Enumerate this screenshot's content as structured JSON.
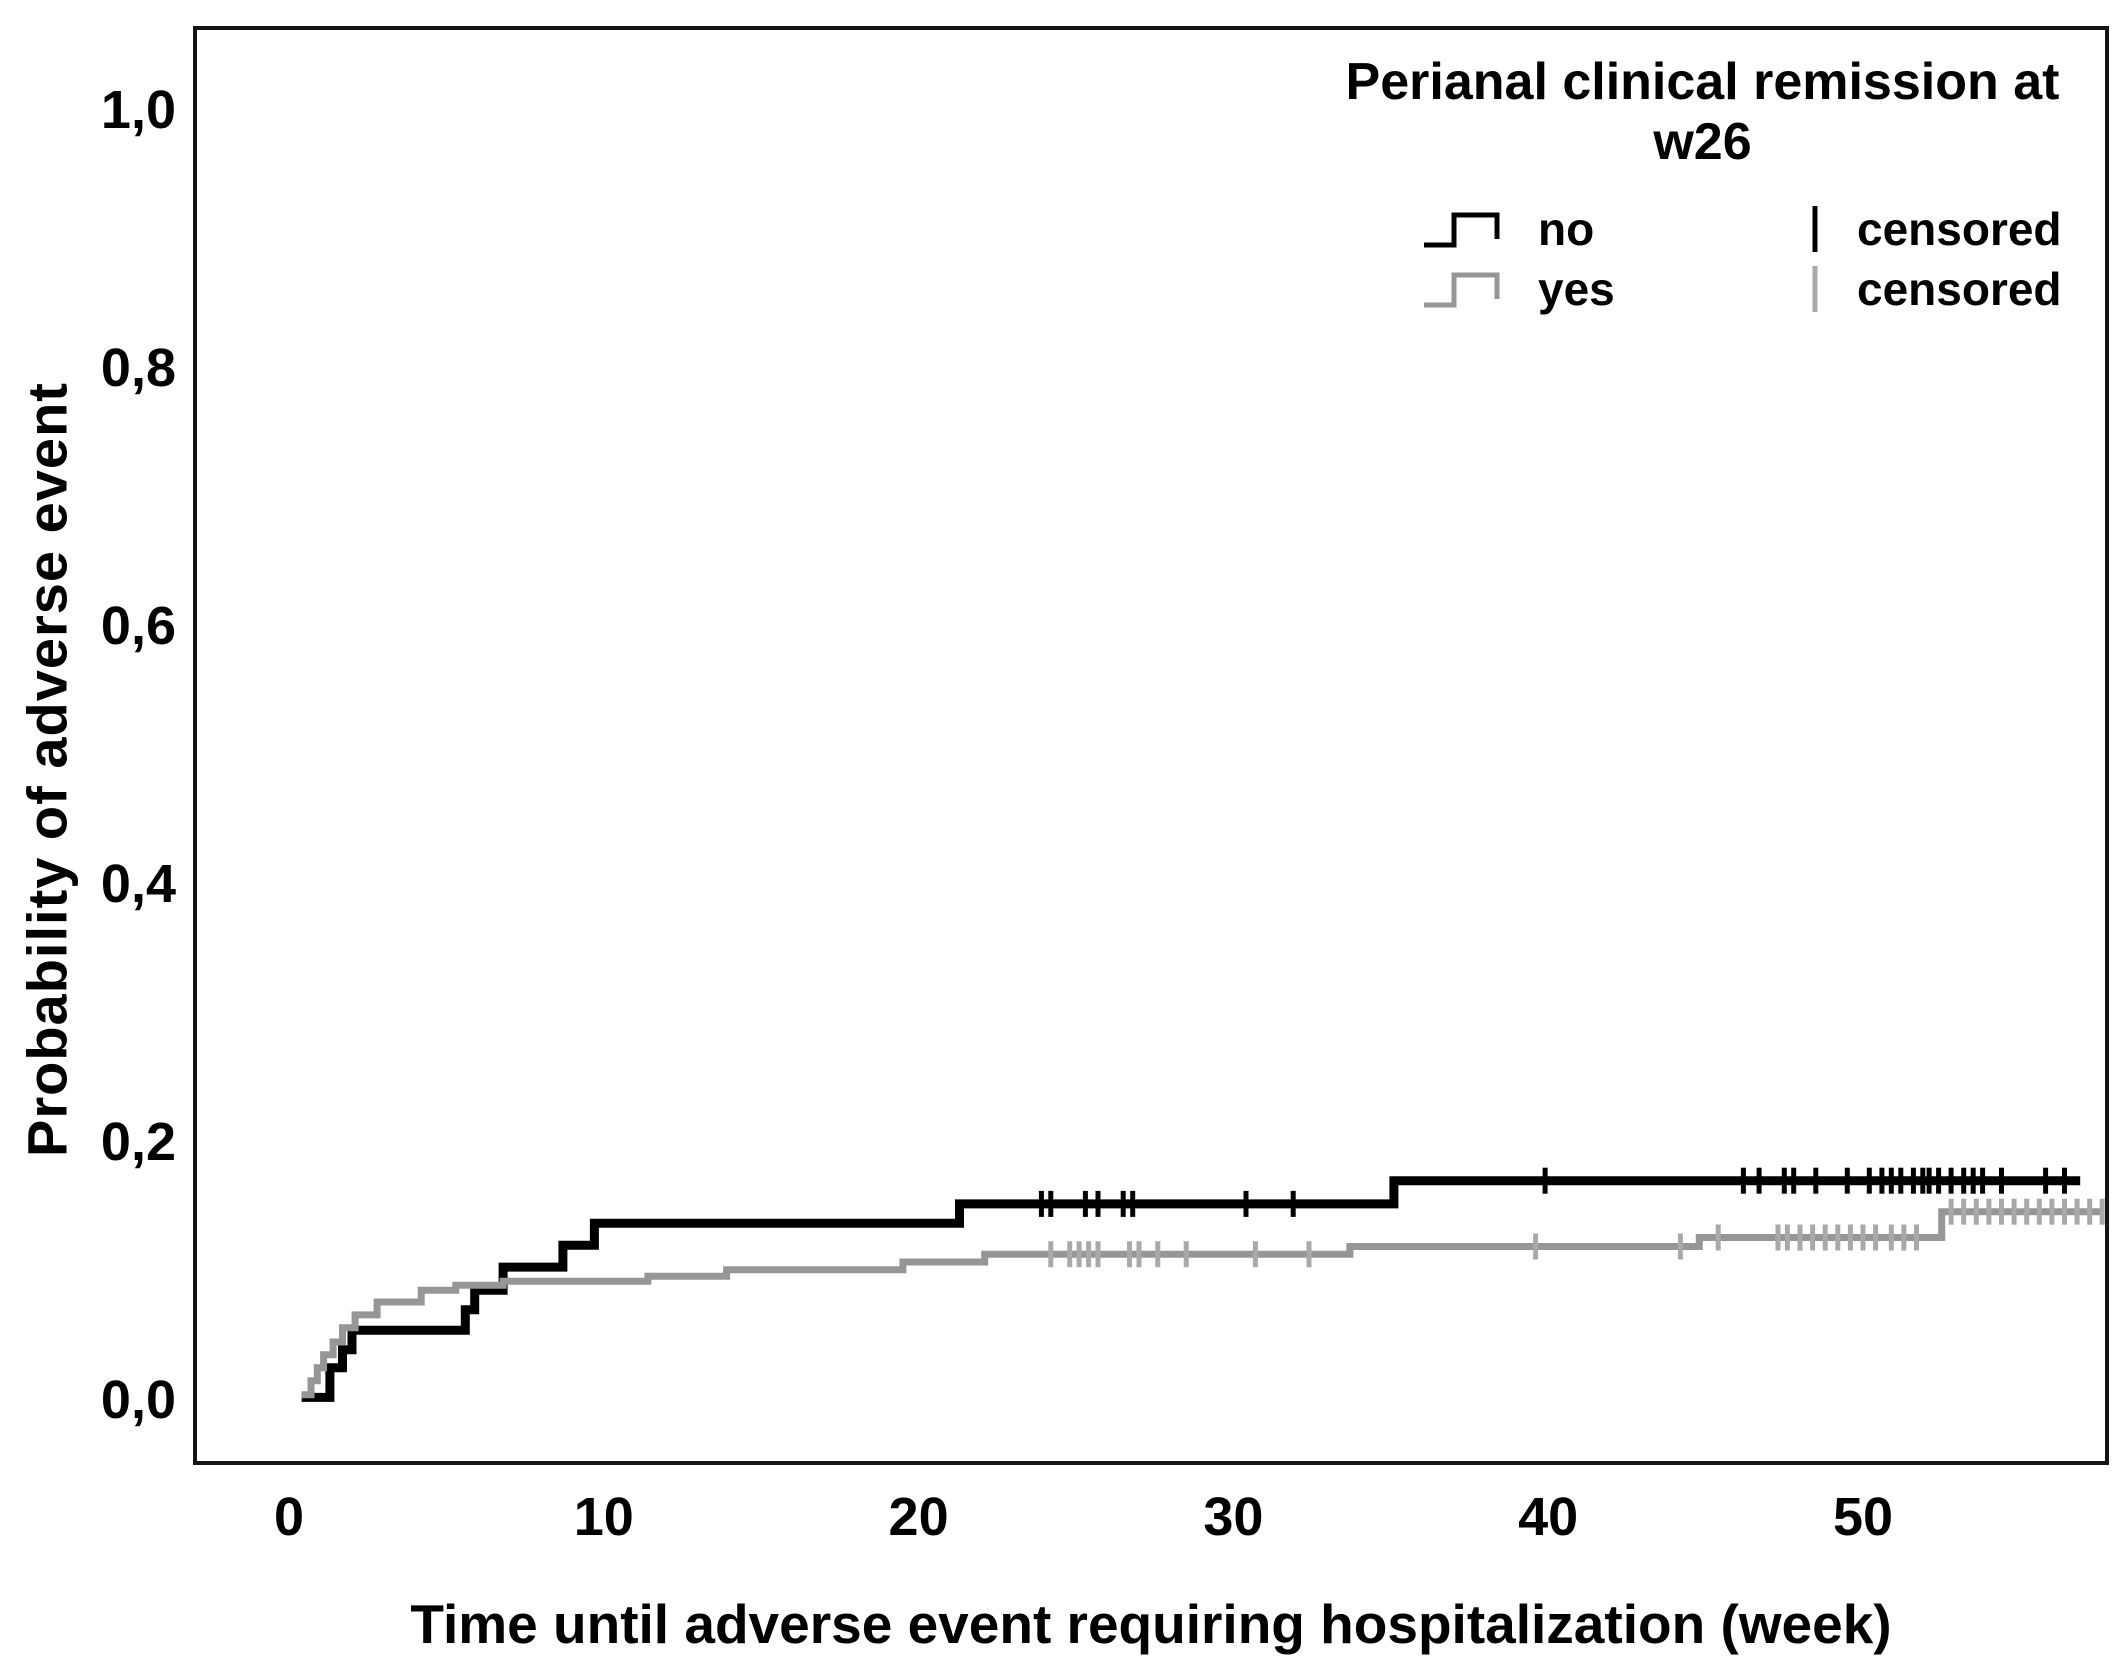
{
  "figure": {
    "y_axis": {
      "title": "Probability of adverse event",
      "tick_labels": [
        "0,0",
        "0,2",
        "0,4",
        "0,6",
        "0,8",
        "1,0"
      ],
      "tick_values": [
        0,
        0.2,
        0.4,
        0.6,
        0.8,
        1.0
      ]
    },
    "x_axis": {
      "title": "Time until adverse event requiring hospitalization (week)",
      "tick_labels": [
        "0",
        "10",
        "20",
        "30",
        "40",
        "50"
      ],
      "tick_values": [
        0,
        10,
        20,
        30,
        40,
        50
      ]
    },
    "legend": {
      "title_lines": [
        "Perianal clinical remission at",
        "w26"
      ],
      "rows": [
        {
          "series_label": "no",
          "censored_label": "censored"
        },
        {
          "series_label": "yes",
          "censored_label": "censored"
        }
      ]
    }
  },
  "chart_data": {
    "type": "line",
    "variant": "kaplan_meier_cumulative_incidence_step",
    "title": "",
    "legend_title": "Perianal clinical remission at w26",
    "legend_position": "top-right",
    "grid": false,
    "xlabel": "Time until adverse event requiring hospitalization (week)",
    "ylabel": "Probability of adverse event",
    "xlim": [
      -3.1,
      58.6
    ],
    "ylim": [
      -0.05,
      1.06
    ],
    "x_ticks": [
      0,
      10,
      20,
      30,
      40,
      50
    ],
    "y_ticks": [
      0,
      0.2,
      0.4,
      0.6,
      0.8,
      1.0
    ],
    "y_tick_labels": [
      "0,0",
      "0,2",
      "0,4",
      "0,6",
      "0,8",
      "1,0"
    ],
    "series": [
      {
        "name": "no",
        "label": "no",
        "color": "#000000",
        "censor_color": "#000000",
        "line_width": 9,
        "steps": [
          [
            0.4,
            0.002
          ],
          [
            1.3,
            0.025
          ],
          [
            1.7,
            0.039
          ],
          [
            2.0,
            0.054
          ],
          [
            5.6,
            0.07
          ],
          [
            5.9,
            0.085
          ],
          [
            6.8,
            0.103
          ],
          [
            8.7,
            0.12
          ],
          [
            9.7,
            0.137
          ],
          [
            21.3,
            0.152
          ],
          [
            35.1,
            0.17
          ]
        ],
        "end_week": 56.9,
        "censored_weeks": [
          23.9,
          24.2,
          25.3,
          25.7,
          26.5,
          26.8,
          30.4,
          31.9,
          39.9,
          46.2,
          46.7,
          47.5,
          47.8,
          48.5,
          49.5,
          50.2,
          50.6,
          50.9,
          51.2,
          51.6,
          51.9,
          52.1,
          52.4,
          52.8,
          53.2,
          53.5,
          53.8,
          54.4,
          55.8,
          56.4
        ]
      },
      {
        "name": "yes",
        "label": "yes",
        "color": "#969696",
        "censor_color": "#a9a9a9",
        "line_width": 7,
        "steps": [
          [
            0.4,
            0.004
          ],
          [
            0.7,
            0.015
          ],
          [
            0.9,
            0.025
          ],
          [
            1.1,
            0.035
          ],
          [
            1.4,
            0.045
          ],
          [
            1.7,
            0.056
          ],
          [
            2.1,
            0.066
          ],
          [
            2.8,
            0.076
          ],
          [
            4.2,
            0.085
          ],
          [
            5.3,
            0.089
          ],
          [
            6.8,
            0.092
          ],
          [
            11.4,
            0.096
          ],
          [
            13.9,
            0.101
          ],
          [
            19.5,
            0.107
          ],
          [
            22.1,
            0.113
          ],
          [
            33.7,
            0.119
          ],
          [
            44.8,
            0.126
          ],
          [
            52.5,
            0.146
          ]
        ],
        "end_week": 57.8,
        "censored_weeks": [
          24.2,
          24.8,
          25.1,
          25.4,
          25.7,
          26.7,
          27.0,
          27.6,
          28.5,
          30.7,
          32.4,
          39.6,
          44.2,
          45.4,
          47.3,
          47.6,
          48.0,
          48.4,
          48.8,
          49.2,
          49.6,
          50.0,
          50.4,
          50.9,
          51.3,
          51.7,
          52.8,
          53.2,
          53.6,
          54.0,
          54.4,
          54.8,
          55.2,
          55.6,
          56.0,
          56.4,
          56.8,
          57.2,
          57.6
        ]
      }
    ]
  }
}
